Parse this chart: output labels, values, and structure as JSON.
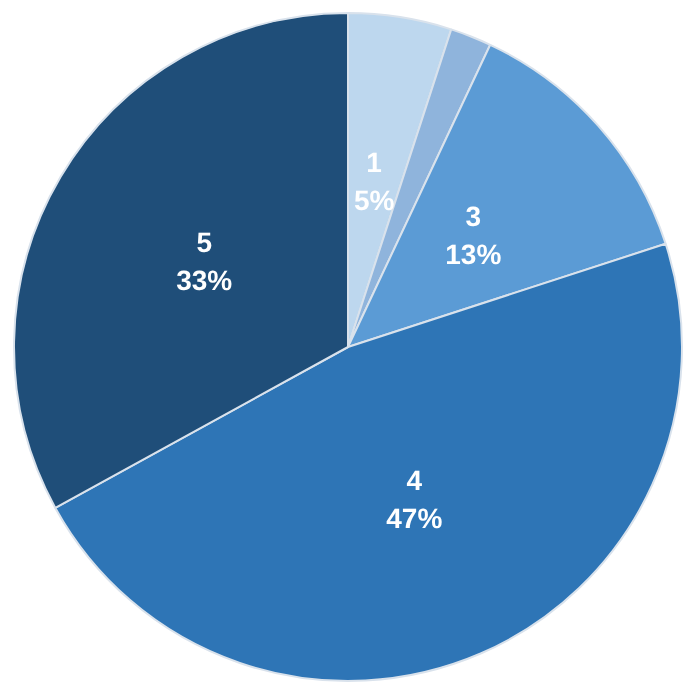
{
  "chart_data": {
    "type": "pie",
    "categories": [
      "1",
      null,
      "3",
      "4",
      "5"
    ],
    "values": [
      5,
      2,
      13,
      47,
      33
    ],
    "colors": [
      "#bdd7ee",
      "#8fb4dc",
      "#5b9bd5",
      "#2e75b6",
      "#1f4e79"
    ],
    "value_labels": [
      "5%",
      null,
      "13%",
      "47%",
      "33%"
    ],
    "legend": false
  }
}
